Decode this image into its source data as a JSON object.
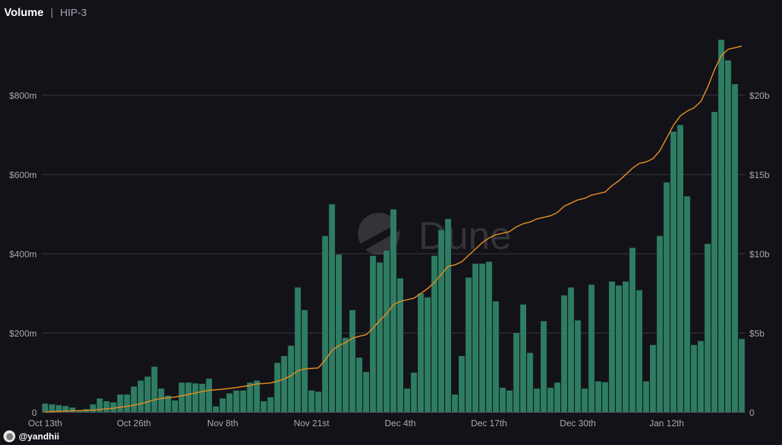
{
  "header": {
    "title": "Volume",
    "separator": "|",
    "subtitle": "HIP-3"
  },
  "footer": {
    "handle": "@yandhii"
  },
  "watermark": "Dune",
  "colors": {
    "background": "#131218",
    "bar": "#2e7d62",
    "line": "#e08a23",
    "grid": "#3a3a44",
    "axis_text": "#a8a8b2"
  },
  "chart_data": {
    "type": "bar",
    "x_tick_labels": [
      "Oct 13th",
      "Oct 26th",
      "Nov 8th",
      "Nov 21st",
      "Dec 4th",
      "Dec 17th",
      "Dec 30th",
      "Jan 12th"
    ],
    "y_left": {
      "ticks": [
        "0",
        "$200m",
        "$400m",
        "$600m",
        "$800m"
      ],
      "range": [
        0,
        960
      ]
    },
    "y_right": {
      "ticks": [
        "0",
        "$5b",
        "$10b",
        "$15b",
        "$20b"
      ],
      "range": [
        0,
        24
      ]
    },
    "grid": true,
    "series": [
      {
        "type": "bar",
        "axis": "left",
        "unit": "$m",
        "values": [
          22,
          20,
          18,
          16,
          12,
          5,
          8,
          20,
          35,
          28,
          25,
          45,
          45,
          65,
          80,
          90,
          115,
          60,
          42,
          30,
          75,
          75,
          73,
          72,
          85,
          15,
          35,
          48,
          55,
          55,
          75,
          80,
          28,
          38,
          125,
          142,
          168,
          315,
          258,
          55,
          52,
          445,
          525,
          398,
          188,
          258,
          138,
          102,
          395,
          378,
          408,
          512,
          338,
          60,
          100,
          300,
          290,
          395,
          460,
          488,
          45,
          142,
          340,
          375,
          375,
          380,
          280,
          62,
          55,
          200,
          272,
          150,
          60,
          230,
          62,
          75,
          295,
          315,
          232,
          60,
          322,
          78,
          76,
          330,
          320,
          330,
          415,
          308,
          78,
          170,
          445,
          580,
          708,
          725,
          545,
          170,
          180,
          425,
          758,
          940,
          888,
          828,
          185
        ]
      },
      {
        "type": "line",
        "axis": "right",
        "unit": "$b",
        "values": [
          0.02,
          0.04,
          0.06,
          0.08,
          0.1,
          0.11,
          0.12,
          0.14,
          0.18,
          0.22,
          0.26,
          0.32,
          0.38,
          0.45,
          0.55,
          0.66,
          0.79,
          0.87,
          0.92,
          0.96,
          1.04,
          1.13,
          1.22,
          1.31,
          1.39,
          1.42,
          1.46,
          1.51,
          1.56,
          1.63,
          1.7,
          1.79,
          1.82,
          1.85,
          1.96,
          2.1,
          2.32,
          2.62,
          2.74,
          2.77,
          2.8,
          3.3,
          3.9,
          4.2,
          4.4,
          4.68,
          4.8,
          4.9,
          5.3,
          5.8,
          6.2,
          6.8,
          7.0,
          7.1,
          7.2,
          7.5,
          7.8,
          8.2,
          8.7,
          9.2,
          9.3,
          9.5,
          9.9,
          10.3,
          10.7,
          11.0,
          11.2,
          11.3,
          11.4,
          11.7,
          11.9,
          12.0,
          12.2,
          12.3,
          12.4,
          12.6,
          13.0,
          13.2,
          13.4,
          13.5,
          13.7,
          13.8,
          13.9,
          14.3,
          14.6,
          15.0,
          15.4,
          15.7,
          15.8,
          16.0,
          16.5,
          17.3,
          18.1,
          18.7,
          19.0,
          19.2,
          19.6,
          20.5,
          21.6,
          22.5,
          22.9,
          23.0,
          23.1
        ]
      }
    ]
  }
}
